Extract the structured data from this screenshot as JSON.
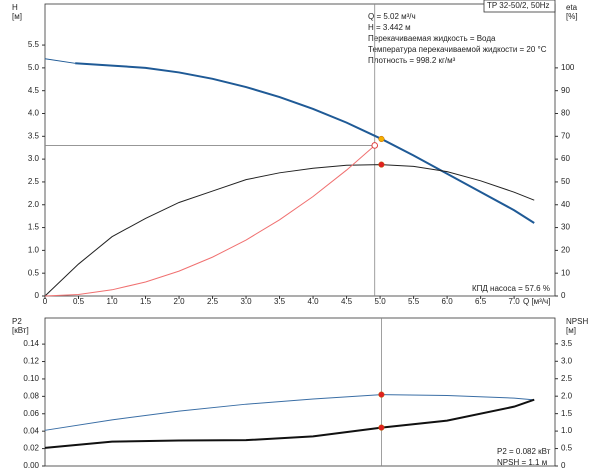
{
  "chart_data": [
    {
      "type": "line",
      "title": "TP 32-50/2, 50Hz",
      "annotations": [
        "Q = 5.02 м³/ч",
        "H = 3.442 м",
        "Перекачиваемая жидкость = Вода",
        "Температура перекачиваемой жидкости = 20 °C",
        "Плотность = 998.2 кг/м³"
      ],
      "footnote": "КПД насоса = 57.6 %",
      "xlabel": "Q [м³/ч]",
      "ylabel": [
        "H",
        "[м]"
      ],
      "y2label": [
        "eta",
        "[%]"
      ],
      "xlim": [
        0,
        7.61
      ],
      "ylim": [
        0,
        6.4
      ],
      "y2lim": [
        0,
        128
      ],
      "xticks": [
        0,
        0.5,
        {
          "value": 1,
          "label": "1.0"
        },
        1.5,
        {
          "value": 2,
          "label": "2.0"
        },
        2.5,
        {
          "value": 3,
          "label": "3.0"
        },
        3.5,
        {
          "value": 4,
          "label": "4.0"
        },
        4.5,
        {
          "value": 5,
          "label": "5.0"
        },
        5.5,
        {
          "value": 6,
          "label": "6.0"
        },
        6.5,
        {
          "value": 7,
          "label": "7.0"
        }
      ],
      "yticks": [
        0,
        0.5,
        {
          "value": 1,
          "label": "1.0"
        },
        1.5,
        {
          "value": 2,
          "label": "2.0"
        },
        2.5,
        {
          "value": 3,
          "label": "3.0"
        },
        3.5,
        {
          "value": 4,
          "label": "4.0"
        },
        4.5,
        {
          "value": 5,
          "label": "5.0"
        },
        5.5
      ],
      "y2ticks": [
        0,
        10,
        20,
        30,
        40,
        50,
        60,
        70,
        80,
        90,
        100
      ],
      "series": [
        {
          "color": "#1f5a96",
          "width": 1,
          "x": [
            0,
            0.45
          ],
          "values": [
            5.2,
            5.1
          ]
        },
        {
          "color": "#1f5a96",
          "width": 2,
          "x": [
            0.45,
            1,
            1.5,
            2,
            2.5,
            3,
            3.5,
            4,
            4.5,
            5.02,
            5.5,
            6,
            6.5,
            7,
            7.3
          ],
          "values": [
            5.1,
            5.05,
            5.0,
            4.9,
            4.76,
            4.58,
            4.36,
            4.1,
            3.8,
            3.442,
            3.08,
            2.68,
            2.28,
            1.88,
            1.6
          ]
        },
        {
          "color": "#222222",
          "width": 1,
          "axis": "y2",
          "x": [
            0,
            0.5,
            1,
            1.5,
            2,
            2.5,
            3,
            3.5,
            4,
            4.5,
            5,
            5.5,
            6,
            6.5,
            7,
            7.3
          ],
          "values": [
            0,
            14,
            26,
            34,
            41,
            46,
            51,
            54,
            56,
            57.3,
            57.6,
            56.8,
            54.5,
            50.5,
            45.5,
            42
          ]
        },
        {
          "color": "#f07070",
          "width": 1,
          "x": [
            0,
            0.5,
            1,
            1.5,
            2,
            2.5,
            3,
            3.5,
            4,
            4.5,
            4.92
          ],
          "values": [
            0,
            0.034,
            0.136,
            0.307,
            0.545,
            0.852,
            1.227,
            1.67,
            2.181,
            2.76,
            3.3
          ]
        }
      ],
      "points": [
        {
          "x": 4.92,
          "value": 3.3,
          "color": "#e04040",
          "hollow": true,
          "guide": "hv"
        },
        {
          "x": 5.02,
          "value": 3.442,
          "color": "#f5b000"
        },
        {
          "x": 5.02,
          "value": 57.6,
          "axis": "y2",
          "color": "#e02020"
        }
      ]
    },
    {
      "type": "line",
      "annotations": [
        "P2 = 0.082 кВт",
        "NPSH = 1.1 м"
      ],
      "ylabel": [
        "P2",
        "[кВт]"
      ],
      "y2label": [
        "NPSH",
        "[м]"
      ],
      "xlim": [
        0,
        7.61
      ],
      "ylim": [
        0,
        0.17
      ],
      "y2lim": [
        0,
        4.24
      ],
      "yticks": [
        {
          "value": 0,
          "label": "0.00"
        },
        0.02,
        0.04,
        0.06,
        0.08,
        {
          "value": 0.1,
          "label": "0.10"
        },
        0.12,
        0.14
      ],
      "y2ticks": [
        0,
        0.5,
        {
          "value": 1,
          "label": "1.0"
        },
        1.5,
        {
          "value": 2,
          "label": "2.0"
        },
        2.5,
        {
          "value": 3,
          "label": "3.0"
        },
        3.5
      ],
      "series": [
        {
          "color": "#3a6ea5",
          "width": 1,
          "x": [
            0,
            1,
            2,
            3,
            4,
            5.02,
            6,
            7,
            7.3
          ],
          "values": [
            0.041,
            0.053,
            0.063,
            0.071,
            0.077,
            0.082,
            0.081,
            0.078,
            0.076
          ]
        },
        {
          "color": "#111111",
          "width": 2,
          "axis": "y2",
          "x": [
            0,
            1,
            2,
            3,
            4,
            5.02,
            6,
            7,
            7.3
          ],
          "values": [
            0.52,
            0.7,
            0.73,
            0.74,
            0.85,
            1.1,
            1.3,
            1.7,
            1.9
          ]
        }
      ],
      "points": [
        {
          "x": 5.02,
          "value": 0.082,
          "color": "#e02020",
          "guide": "v"
        },
        {
          "x": 5.02,
          "value": 1.1,
          "axis": "y2",
          "color": "#e02020"
        }
      ]
    }
  ]
}
